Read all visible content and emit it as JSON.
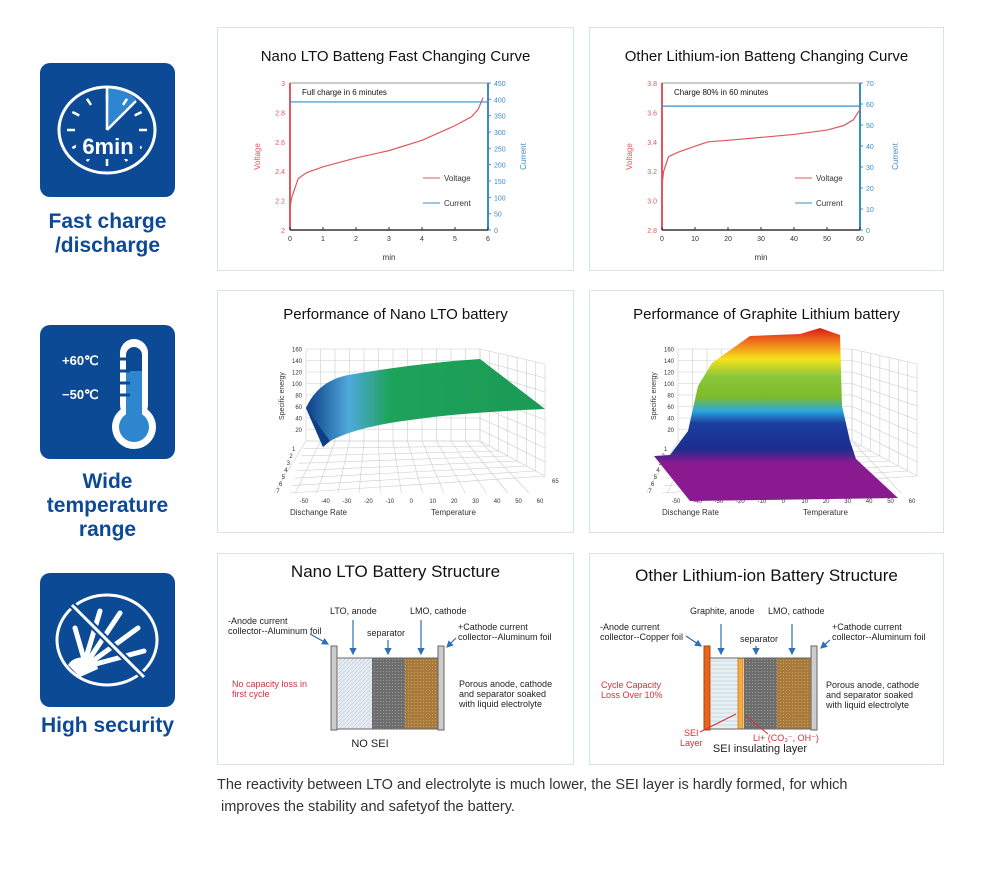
{
  "features": [
    {
      "label_lines": [
        "Fast charge",
        "/discharge"
      ],
      "icon": "stopwatch-icon",
      "icon_text": "6min"
    },
    {
      "label_lines": [
        "Wide",
        "temperature",
        "range"
      ],
      "icon": "thermometer-icon",
      "icon_text_high": "+60℃",
      "icon_text_low": "−50℃"
    },
    {
      "label_lines": [
        "High security"
      ],
      "icon": "no-explosion-icon"
    }
  ],
  "colors": {
    "brand_blue": "#0d4a96",
    "voltage": "#e0575f",
    "current": "#3a8cc8",
    "red_text": "#d6303a"
  },
  "chart_data": [
    {
      "type": "line",
      "title": "Nano LTO Batteng Fast Changing Curve",
      "annotation": "Full charge in 6 minutes",
      "xlabel": "min",
      "ylabel": "Voltage",
      "y2label": "Current",
      "xlim": [
        0,
        6
      ],
      "ylim": [
        2,
        3
      ],
      "y2lim": [
        0,
        450
      ],
      "xticks": [
        "0",
        "1",
        "2",
        "3",
        "4",
        "5",
        "6"
      ],
      "yticks": [
        "2",
        "2.2",
        "2.4",
        "2.6",
        "2.8",
        "3"
      ],
      "y2ticks": [
        "0",
        "50",
        "100",
        "150",
        "200",
        "250",
        "300",
        "350",
        "400",
        "450"
      ],
      "legend": [
        "Voltage",
        "Current"
      ],
      "series": [
        {
          "name": "Voltage",
          "axis": "left",
          "x": [
            0,
            0.05,
            0.25,
            0.5,
            1,
            2,
            3,
            4,
            5,
            5.5,
            5.7,
            5.85
          ],
          "y": [
            2.15,
            2.22,
            2.35,
            2.39,
            2.43,
            2.49,
            2.54,
            2.61,
            2.71,
            2.77,
            2.82,
            2.9
          ]
        },
        {
          "name": "Current",
          "axis": "right",
          "x": [
            0,
            6
          ],
          "y": [
            392,
            392
          ]
        }
      ]
    },
    {
      "type": "line",
      "title": "Other Lithium-ion Batteng Changing Curve",
      "annotation": "Charge 80% in 60 minutes",
      "xlabel": "min",
      "ylabel": "Voltage",
      "y2label": "Current",
      "xlim": [
        0,
        60
      ],
      "ylim": [
        2.8,
        3.8
      ],
      "y2lim": [
        0,
        70
      ],
      "xticks": [
        "0",
        "10",
        "20",
        "30",
        "40",
        "50",
        "60"
      ],
      "yticks": [
        "2.8",
        "3.0",
        "3.2",
        "3.4",
        "3.6",
        "3.8"
      ],
      "y2ticks": [
        "0",
        "10",
        "20",
        "30",
        "40",
        "50",
        "60",
        "70"
      ],
      "legend": [
        "Voltage",
        "Current"
      ],
      "series": [
        {
          "name": "Voltage",
          "axis": "left",
          "x": [
            0,
            0.5,
            2,
            5,
            10,
            14,
            20,
            30,
            40,
            50,
            55,
            58,
            60
          ],
          "y": [
            3.1,
            3.2,
            3.3,
            3.33,
            3.37,
            3.4,
            3.41,
            3.43,
            3.45,
            3.48,
            3.51,
            3.55,
            3.62
          ]
        },
        {
          "name": "Current",
          "axis": "right",
          "x": [
            0,
            60
          ],
          "y": [
            59,
            59
          ]
        }
      ]
    },
    {
      "type": "surface",
      "title": "Performance of Nano LTO battery",
      "zlabel": "Specific energy",
      "ylabel": "Dischange Rate",
      "xlabel": "Temperature",
      "zticks": [
        "20",
        "40",
        "60",
        "80",
        "100",
        "120",
        "140",
        "160"
      ],
      "yticks": [
        "1",
        "2",
        "3",
        "4",
        "5",
        "6",
        "7"
      ],
      "xticks": [
        "-50",
        "-40",
        "-30",
        "-20",
        "-10",
        "0",
        "10",
        "20",
        "30",
        "40",
        "50",
        "60"
      ],
      "extra_tick": "65"
    },
    {
      "type": "surface",
      "title": "Performance of Graphite Lithium battery",
      "zlabel": "Specific energy",
      "ylabel": "Dischange Rate",
      "xlabel": "Temperature",
      "zticks": [
        "20",
        "40",
        "60",
        "80",
        "100",
        "120",
        "140",
        "160"
      ],
      "yticks": [
        "1",
        "2",
        "3",
        "4",
        "5",
        "6",
        "7"
      ],
      "xticks": [
        "-50",
        "-40",
        "-30",
        "-20",
        "-10",
        "0",
        "10",
        "20",
        "30",
        "40",
        "50",
        "60"
      ]
    }
  ],
  "structure_left": {
    "title": "Nano LTO Battery Structure",
    "anode_collector": [
      "-Anode current",
      "collector--Aluminum foil"
    ],
    "anode": "LTO, anode",
    "separator": "separator",
    "cathode": "LMO, cathode",
    "cathode_collector": [
      "+Cathode current",
      "collector--Aluminum foil"
    ],
    "note": [
      "No capacity loss in",
      "first cycle"
    ],
    "porous": [
      "Porous anode, cathode",
      "and separator soaked",
      "with liquid electrolyte"
    ],
    "bottom": "NO SEI"
  },
  "structure_right": {
    "title": "Other Lithium-ion Battery Structure",
    "anode_collector": [
      "-Anode current",
      "collector--Copper foil"
    ],
    "anode": "Graphite, anode",
    "separator": "separator",
    "cathode": "LMO, cathode",
    "cathode_collector": [
      "+Cathode current",
      "collector--Aluminum foil"
    ],
    "note": [
      "Cycle Capacity",
      "Loss Over 10%"
    ],
    "porous": [
      "Porous anode, cathode",
      "and separator soaked",
      "with liquid electrolyte"
    ],
    "sei_layer": [
      "SEI",
      "Layer"
    ],
    "ions": "Li+ (CO₃⁻, OH⁻)",
    "bottom": "SEI insulating layer"
  },
  "caption": [
    "The reactivity between LTO and electrolyte is much lower, the SEI layer is hardly formed, for which",
    "improves the stability and safetyof the battery."
  ]
}
